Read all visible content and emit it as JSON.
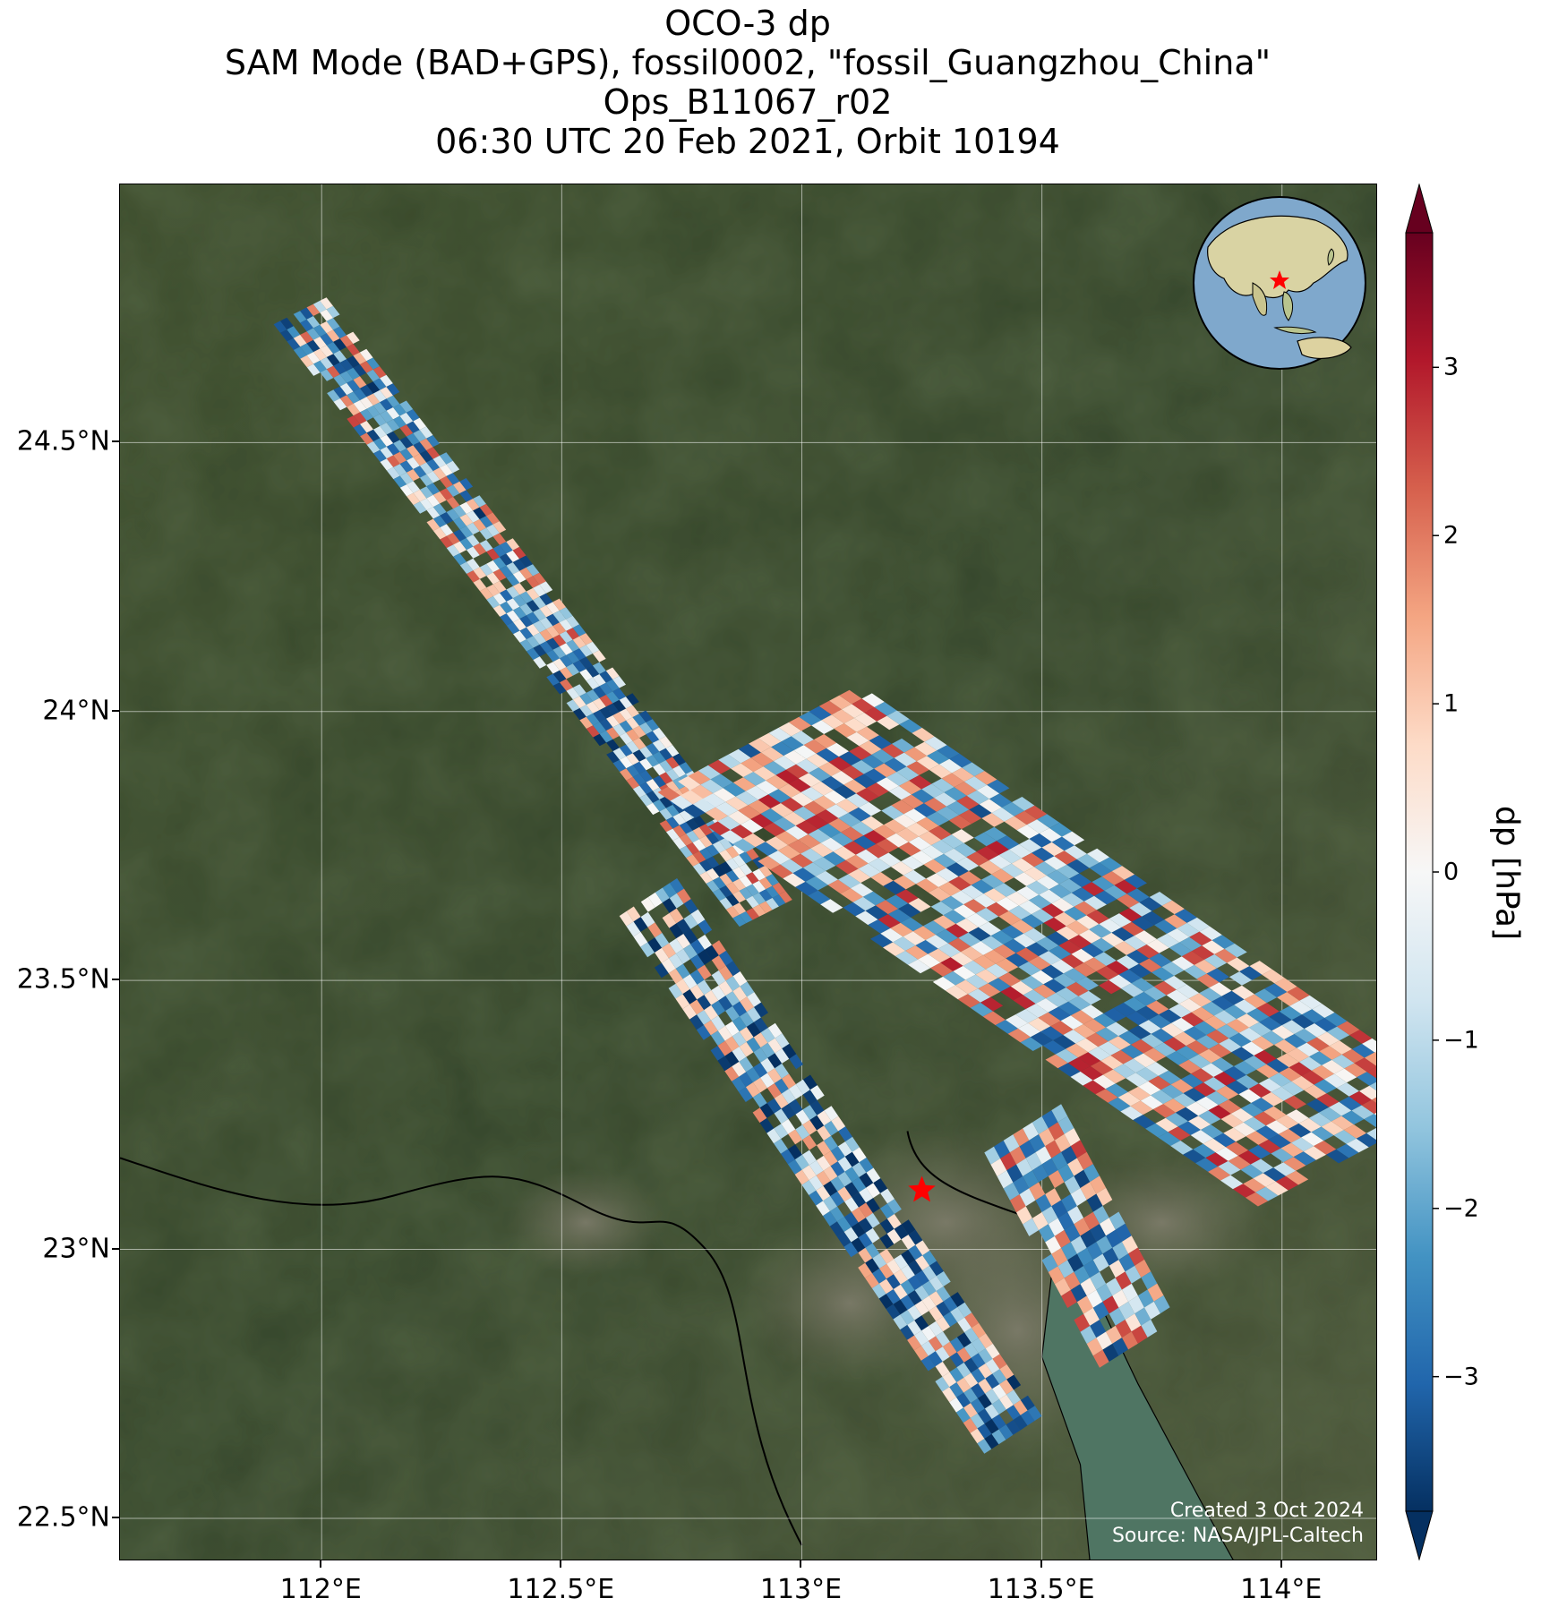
{
  "title_lines": [
    "OCO-3 dp",
    "SAM Mode (BAD+GPS), fossil0002, \"fossil_Guangzhou_China\"",
    "Ops_B11067_r02",
    "06:30 UTC 20 Feb 2021, Orbit 10194"
  ],
  "map": {
    "lon_range": [
      111.58,
      114.2
    ],
    "lat_range": [
      22.42,
      24.98
    ],
    "target": {
      "lon": 113.25,
      "lat": 23.11,
      "marker_color": "#ff0000"
    },
    "x_ticks": [
      {
        "value": 112.0,
        "label": "112°E"
      },
      {
        "value": 112.5,
        "label": "112.5°E"
      },
      {
        "value": 113.0,
        "label": "113°E"
      },
      {
        "value": 113.5,
        "label": "113.5°E"
      },
      {
        "value": 114.0,
        "label": "114°E"
      }
    ],
    "y_ticks": [
      {
        "value": 22.5,
        "label": "22.5°N"
      },
      {
        "value": 23.0,
        "label": "23°N"
      },
      {
        "value": 23.5,
        "label": "23.5°N"
      },
      {
        "value": 24.0,
        "label": "24°N"
      },
      {
        "value": 24.5,
        "label": "24.5°N"
      }
    ],
    "grid": true,
    "background": "satellite imagery",
    "credit_line1": "Created 3 Oct 2024",
    "credit_line2": "Source: NASA/JPL-Caltech"
  },
  "colorbar": {
    "label": "dp [hPa]",
    "range": [
      -3.8,
      3.8
    ],
    "colormap": "RdBu_r",
    "extend": "both",
    "ticks": [
      {
        "value": 3,
        "label": "3"
      },
      {
        "value": 2,
        "label": "2"
      },
      {
        "value": 1,
        "label": "1"
      },
      {
        "value": 0,
        "label": "0"
      },
      {
        "value": -1,
        "label": "−1"
      },
      {
        "value": -2,
        "label": "−2"
      },
      {
        "value": -3,
        "label": "−3"
      }
    ],
    "colors": [
      "#053061",
      "#2166ac",
      "#4393c3",
      "#92c5de",
      "#d1e5f0",
      "#f7f7f7",
      "#fddbc7",
      "#f4a582",
      "#d6604d",
      "#b2182b",
      "#67001f"
    ]
  },
  "inset_globe": {
    "target_marker_color": "#ff0000"
  }
}
